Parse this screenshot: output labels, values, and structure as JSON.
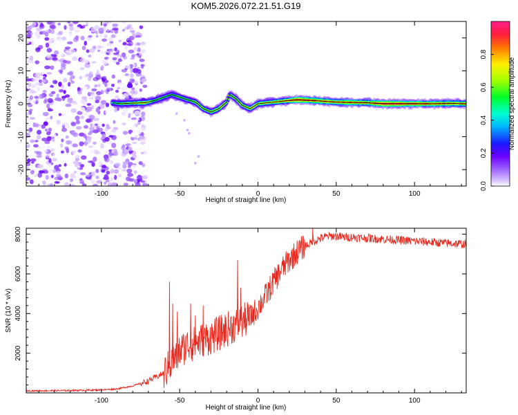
{
  "title": "KOM5.2026.072.21.51.G19",
  "chart_data": [
    {
      "type": "heatmap",
      "name": "spectrogram",
      "xlabel": "Height of straight line (km)",
      "ylabel": "Frequency (Hz)",
      "xlim": [
        -148,
        133
      ],
      "ylim": [
        -25,
        25
      ],
      "xticks": [
        -100,
        -50,
        0,
        50,
        100
      ],
      "yticks": [
        20,
        10,
        0,
        -10,
        -20
      ],
      "xtick_labels": [
        "-100",
        "-50",
        "0",
        "50",
        "100"
      ],
      "ytick_labels": [
        "20",
        "10",
        "0",
        "-10",
        "-20"
      ],
      "colorbar": {
        "label": "Normalized spectral amplitude",
        "range": [
          0,
          1
        ],
        "ticks": [
          0.0,
          0.2,
          0.4,
          0.6,
          0.8
        ],
        "tick_labels": [
          "0.0",
          "0.2",
          "0.4",
          "0.6",
          "0.8"
        ]
      },
      "signal_track": [
        {
          "x": -93,
          "f": 0.3,
          "a": 0.45
        },
        {
          "x": -88,
          "f": 0.0,
          "a": 0.6
        },
        {
          "x": -80,
          "f": 0.2,
          "a": 0.65
        },
        {
          "x": -72,
          "f": 0.3,
          "a": 0.75
        },
        {
          "x": -66,
          "f": 1.0,
          "a": 0.55
        },
        {
          "x": -60,
          "f": 2.0,
          "a": 0.5
        },
        {
          "x": -55,
          "f": 2.8,
          "a": 0.5
        },
        {
          "x": -50,
          "f": 2.0,
          "a": 0.55
        },
        {
          "x": -45,
          "f": 1.2,
          "a": 0.55
        },
        {
          "x": -40,
          "f": 0.5,
          "a": 0.6
        },
        {
          "x": -35,
          "f": -1.5,
          "a": 0.6
        },
        {
          "x": -30,
          "f": -2.5,
          "a": 0.65
        },
        {
          "x": -25,
          "f": -1.5,
          "a": 0.65
        },
        {
          "x": -20,
          "f": 0.5,
          "a": 0.6
        },
        {
          "x": -18,
          "f": 2.8,
          "a": 0.6
        },
        {
          "x": -14,
          "f": 1.5,
          "a": 0.6
        },
        {
          "x": -10,
          "f": -0.5,
          "a": 0.65
        },
        {
          "x": -5,
          "f": -1.5,
          "a": 0.7
        },
        {
          "x": 0,
          "f": 0.0,
          "a": 0.7
        },
        {
          "x": 10,
          "f": 0.5,
          "a": 0.75
        },
        {
          "x": 20,
          "f": 1.0,
          "a": 0.8
        },
        {
          "x": 25,
          "f": 1.2,
          "a": 0.95
        },
        {
          "x": 35,
          "f": 1.0,
          "a": 0.85
        },
        {
          "x": 50,
          "f": 0.5,
          "a": 0.8
        },
        {
          "x": 60,
          "f": 0.4,
          "a": 0.85
        },
        {
          "x": 70,
          "f": 0.3,
          "a": 0.8
        },
        {
          "x": 80,
          "f": 0.0,
          "a": 0.95
        },
        {
          "x": 95,
          "f": 0.0,
          "a": 0.9
        },
        {
          "x": 110,
          "f": 0.0,
          "a": 0.85
        },
        {
          "x": 125,
          "f": 0.1,
          "a": 0.8
        },
        {
          "x": 133,
          "f": 0.0,
          "a": 0.8
        }
      ],
      "noise_region": {
        "x_range": [
          -148,
          -72
        ],
        "amplitude_range": [
          0.0,
          0.2
        ]
      }
    },
    {
      "type": "line",
      "name": "snr",
      "xlabel": "Height of straight line (km)",
      "ylabel": "SNR (10 * v/v)",
      "xlim": [
        -148,
        133
      ],
      "ylim": [
        0,
        8300
      ],
      "xticks": [
        -100,
        -50,
        0,
        50,
        100
      ],
      "yticks": [
        2000,
        4000,
        6000,
        8000
      ],
      "xtick_labels": [
        "-100",
        "-50",
        "0",
        "50",
        "100"
      ],
      "ytick_labels": [
        "2000",
        "4000",
        "6000",
        "8000"
      ],
      "color": "#e8281e",
      "series": [
        {
          "name": "SNR",
          "x": [
            -148,
            -120,
            -100,
            -90,
            -80,
            -70,
            -60,
            -55,
            -50,
            -45,
            -40,
            -35,
            -30,
            -25,
            -20,
            -15,
            -10,
            -5,
            0,
            5,
            10,
            15,
            20,
            25,
            30,
            35,
            40,
            45,
            50,
            55,
            60,
            70,
            80,
            90,
            100,
            110,
            120,
            133
          ],
          "y": [
            100,
            120,
            150,
            200,
            350,
            600,
            1000,
            1500,
            2100,
            2400,
            2500,
            2700,
            2800,
            3000,
            3200,
            3400,
            3600,
            3800,
            4300,
            4900,
            5600,
            6200,
            6700,
            7100,
            7400,
            7600,
            7800,
            7900,
            7900,
            7850,
            7850,
            7800,
            7750,
            7700,
            7650,
            7600,
            7550,
            7500
          ]
        }
      ],
      "spikes": [
        {
          "x": -56.5,
          "y": 5600
        },
        {
          "x": -54.5,
          "y": 4500
        },
        {
          "x": -51.5,
          "y": 4100
        },
        {
          "x": -43.0,
          "y": 4500
        },
        {
          "x": -40.0,
          "y": 3900
        },
        {
          "x": -35.0,
          "y": 4400
        },
        {
          "x": -13.0,
          "y": 6700
        },
        {
          "x": -11.0,
          "y": 5300
        },
        {
          "x": 35.0,
          "y": 8300
        }
      ]
    }
  ]
}
